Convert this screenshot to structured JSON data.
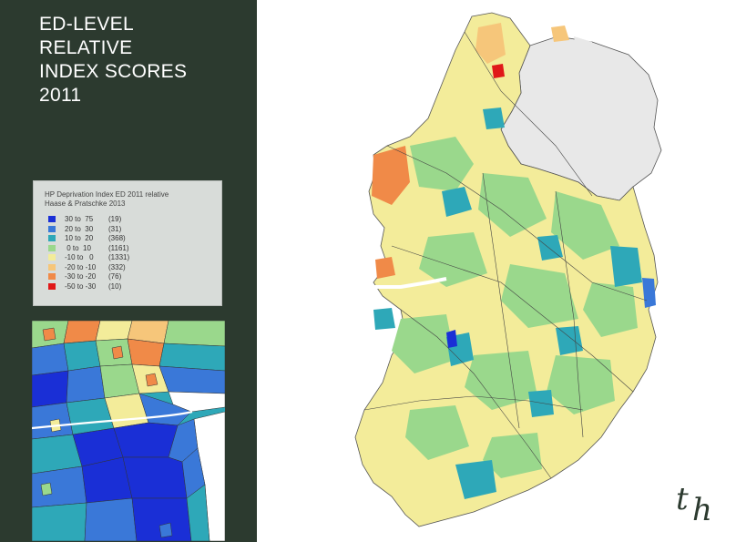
{
  "title": {
    "lines": [
      "ED-LEVEL",
      "RELATIVE",
      "INDEX SCORES",
      "2011"
    ]
  },
  "legend": {
    "title_lines": [
      "HP Deprivation Index ED 2011 relative",
      "Haase & Pratschke 2013"
    ],
    "items": [
      {
        "range": "30 to  75",
        "count": "(19)",
        "color": "#1a2fd6"
      },
      {
        "range": "20 to  30",
        "count": "(31)",
        "color": "#3a78d8"
      },
      {
        "range": "10 to  20",
        "count": "(368)",
        "color": "#2ea8b8"
      },
      {
        "range": " 0 to  10",
        "count": "(1161)",
        "color": "#9ad88c"
      },
      {
        "range": "-10 to   0",
        "count": "(1331)",
        "color": "#f3ec9a"
      },
      {
        "range": "-20 to -10",
        "count": "(332)",
        "color": "#f6c67a"
      },
      {
        "range": "-30 to -20",
        "count": "(76)",
        "color": "#f08a48"
      },
      {
        "range": "-50 to -30",
        "count": "(10)",
        "color": "#e01818"
      }
    ]
  },
  "colors": {
    "sidebar": "#2c3a2f",
    "northern_ireland": "#e8e8e8"
  },
  "logo": {
    "t": "t",
    "h": "h"
  }
}
